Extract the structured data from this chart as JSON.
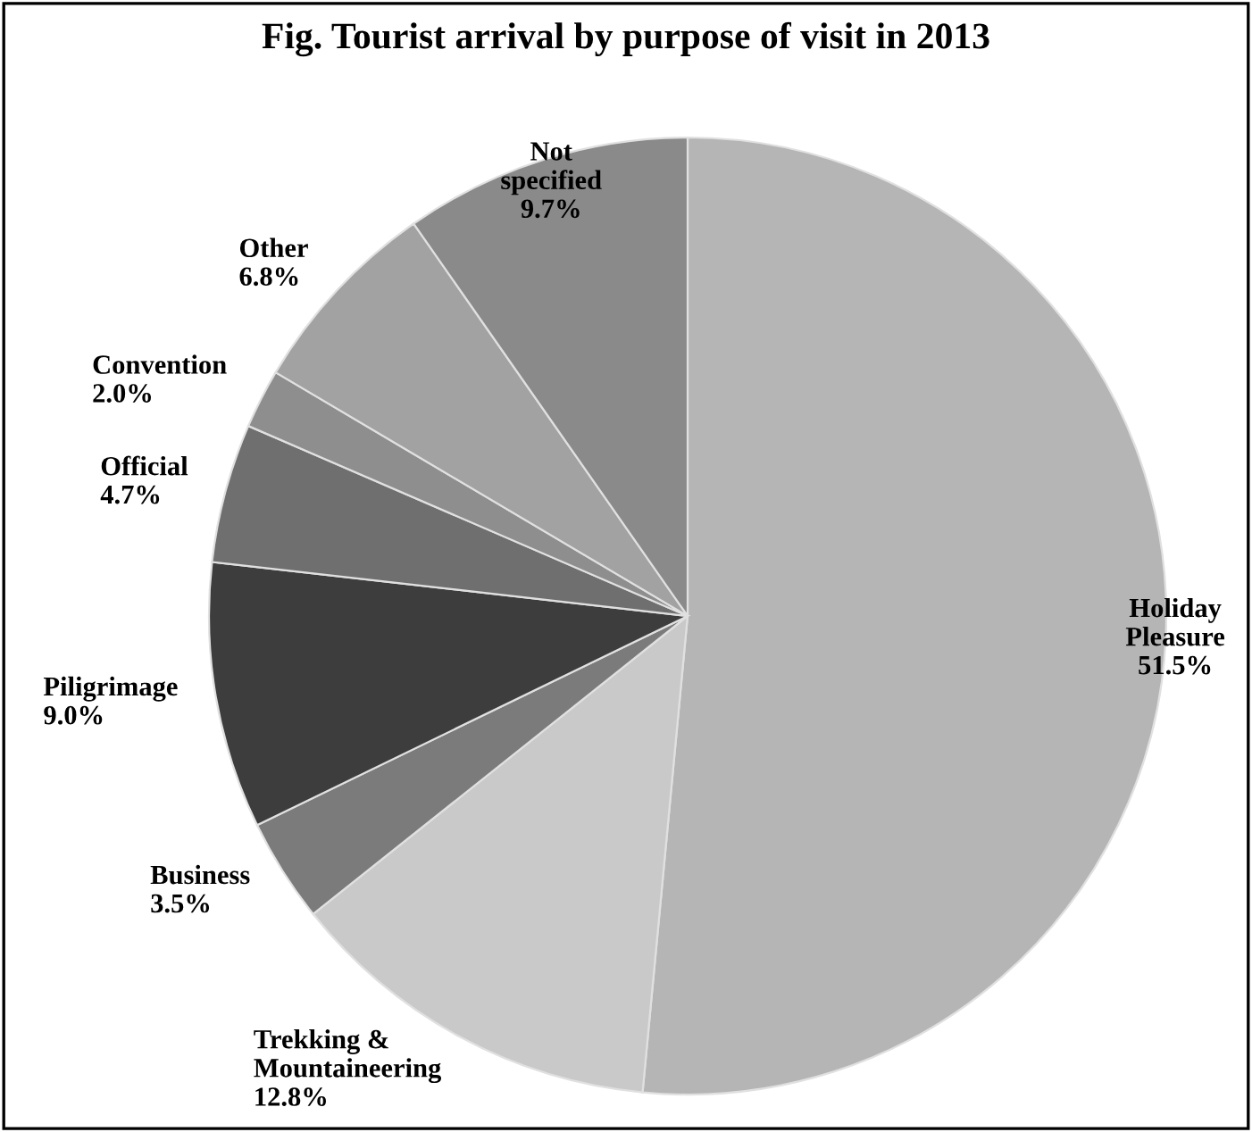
{
  "chart_data": {
    "type": "pie",
    "title": "Fig. Tourist arrival by purpose of visit in 2013",
    "categories": [
      "Holiday\nPleasure",
      "Trekking &\nMountaineering",
      "Business",
      "Piligrimage",
      "Official",
      "Convention",
      "Other",
      "Not\nspecified"
    ],
    "values": [
      51.5,
      12.8,
      3.5,
      9.0,
      4.7,
      2.0,
      6.8,
      9.7
    ],
    "value_labels": [
      "51.5%",
      "12.8%",
      "3.5%",
      "9.0%",
      "4.7%",
      "2.0%",
      "6.8%",
      "9.7%"
    ],
    "colors": [
      "#b5b5b5",
      "#c9c9c9",
      "#7b7b7b",
      "#3d3d3d",
      "#6f6f6f",
      "#8e8e8e",
      "#a2a2a2",
      "#8a8a8a"
    ]
  }
}
